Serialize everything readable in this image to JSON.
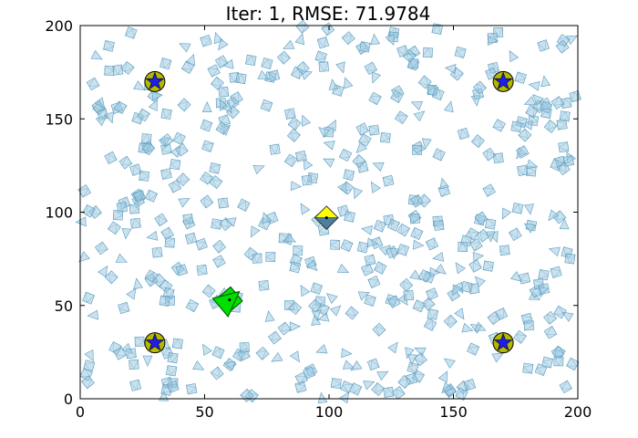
{
  "chart_data": {
    "type": "scatter",
    "title": "Iter: 1, RMSE: 71.9784",
    "xlabel": "",
    "ylabel": "",
    "xlim": [
      0,
      200
    ],
    "ylim": [
      0,
      200
    ],
    "xticks": [
      "0",
      "50",
      "100",
      "150",
      "200"
    ],
    "yticks": [
      "0",
      "50",
      "100",
      "150",
      "200"
    ],
    "xtick_values": [
      0,
      50,
      100,
      150,
      200
    ],
    "ytick_values": [
      0,
      50,
      100,
      150,
      200
    ],
    "grid": false,
    "legend": "none",
    "particle_color": "#9ecae1",
    "particle_edge": "#5b9bbd",
    "anchors": {
      "circle_color": "#b5b800",
      "star_color": "#1e1ee6",
      "points": [
        [
          30,
          170
        ],
        [
          170,
          170
        ],
        [
          30,
          30
        ],
        [
          170,
          30
        ]
      ]
    },
    "true_pose": {
      "x": 60,
      "y": 53,
      "color": "#00e000",
      "edge": "#006400"
    },
    "estimate": {
      "x": 99,
      "y": 97,
      "color": "#ffff00",
      "edge": "#333333"
    },
    "particles_note_count": 500
  }
}
